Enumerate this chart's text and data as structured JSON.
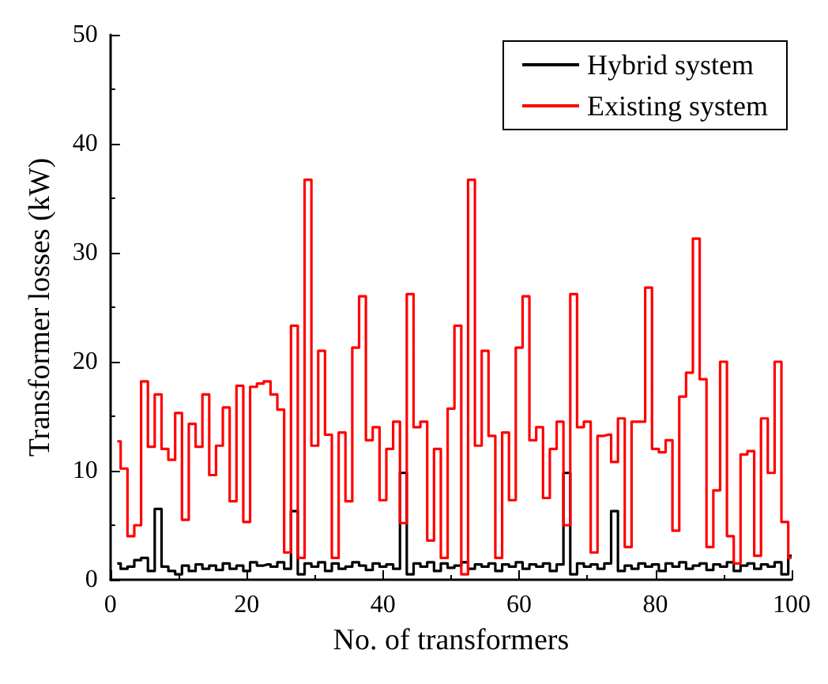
{
  "chart_data": {
    "type": "step",
    "xlabel": "No. of transformers",
    "ylabel": "Transformer losses (kW)",
    "x": [
      1,
      2,
      3,
      4,
      5,
      6,
      7,
      8,
      9,
      10,
      11,
      12,
      13,
      14,
      15,
      16,
      17,
      18,
      19,
      20,
      21,
      22,
      23,
      24,
      25,
      26,
      27,
      28,
      29,
      30,
      31,
      32,
      33,
      34,
      35,
      36,
      37,
      38,
      39,
      40,
      41,
      42,
      43,
      44,
      45,
      46,
      47,
      48,
      49,
      50,
      51,
      52,
      53,
      54,
      55,
      56,
      57,
      58,
      59,
      60,
      61,
      62,
      63,
      64,
      65,
      66,
      67,
      68,
      69,
      70,
      71,
      72,
      73,
      74,
      75,
      76,
      77,
      78,
      79,
      80,
      81,
      82,
      83,
      84,
      85,
      86,
      87,
      88,
      89,
      90,
      91,
      92,
      93,
      94,
      95,
      96,
      97,
      98,
      99,
      100
    ],
    "series": [
      {
        "name": "Hybrid system",
        "color": "#000000",
        "values": [
          1.5,
          1.0,
          1.2,
          1.8,
          2.0,
          0.8,
          6.5,
          1.2,
          0.8,
          0.5,
          1.3,
          0.8,
          1.4,
          1.0,
          1.3,
          0.9,
          1.5,
          1.0,
          1.3,
          0.8,
          1.6,
          1.3,
          1.4,
          1.2,
          1.6,
          1.0,
          6.3,
          0.5,
          1.5,
          1.2,
          1.6,
          0.8,
          1.5,
          1.0,
          1.2,
          1.6,
          1.3,
          0.9,
          1.5,
          1.2,
          1.4,
          1.0,
          9.8,
          0.5,
          1.5,
          1.2,
          1.6,
          0.8,
          1.5,
          1.1,
          1.3,
          1.6,
          1.0,
          1.4,
          1.2,
          1.5,
          0.8,
          1.4,
          1.2,
          1.6,
          1.0,
          1.4,
          1.2,
          1.5,
          0.8,
          1.4,
          9.8,
          0.5,
          1.5,
          1.2,
          1.4,
          1.0,
          1.5,
          6.3,
          0.8,
          1.3,
          1.0,
          1.5,
          1.2,
          1.4,
          0.8,
          1.5,
          1.2,
          1.6,
          1.0,
          1.3,
          1.5,
          0.9,
          1.4,
          1.2,
          1.6,
          0.8,
          1.3,
          1.5,
          1.0,
          1.4,
          1.2,
          1.6,
          0.5,
          2.2
        ]
      },
      {
        "name": "Existing system",
        "color": "#ff0000",
        "values": [
          12.7,
          10.2,
          4.0,
          5.0,
          18.2,
          12.2,
          17.0,
          12.0,
          11.0,
          15.3,
          5.5,
          14.3,
          12.2,
          17.0,
          9.6,
          12.3,
          15.8,
          7.2,
          17.8,
          5.3,
          17.7,
          18.0,
          18.2,
          17.0,
          15.6,
          2.5,
          23.3,
          2.0,
          36.7,
          12.3,
          21.0,
          13.3,
          2.0,
          13.5,
          7.2,
          21.3,
          26.0,
          12.8,
          14.0,
          7.3,
          12.0,
          14.5,
          5.2,
          26.2,
          14.0,
          14.5,
          3.6,
          12.0,
          2.0,
          15.7,
          23.3,
          0.5,
          36.7,
          12.3,
          21.0,
          13.2,
          2.0,
          13.5,
          7.3,
          21.3,
          26.0,
          12.8,
          14.0,
          7.5,
          12.0,
          14.5,
          5.0,
          26.2,
          14.0,
          14.5,
          2.5,
          13.2,
          13.3,
          10.8,
          14.8,
          3.0,
          14.5,
          14.5,
          26.8,
          12.0,
          11.7,
          12.8,
          4.5,
          16.8,
          19.0,
          31.3,
          18.4,
          3.0,
          8.2,
          20.0,
          4.0,
          1.5,
          11.5,
          11.8,
          2.2,
          14.8,
          9.8,
          20.0,
          5.3,
          2.0
        ]
      }
    ],
    "xlim": [
      0,
      100
    ],
    "xticks": [
      0,
      20,
      40,
      60,
      80,
      100
    ],
    "ylim": [
      0,
      50
    ],
    "yticks": [
      0,
      10,
      20,
      30,
      40,
      50
    ],
    "legend": "top right",
    "grid": false,
    "marker": "none",
    "line_style": "solid"
  }
}
